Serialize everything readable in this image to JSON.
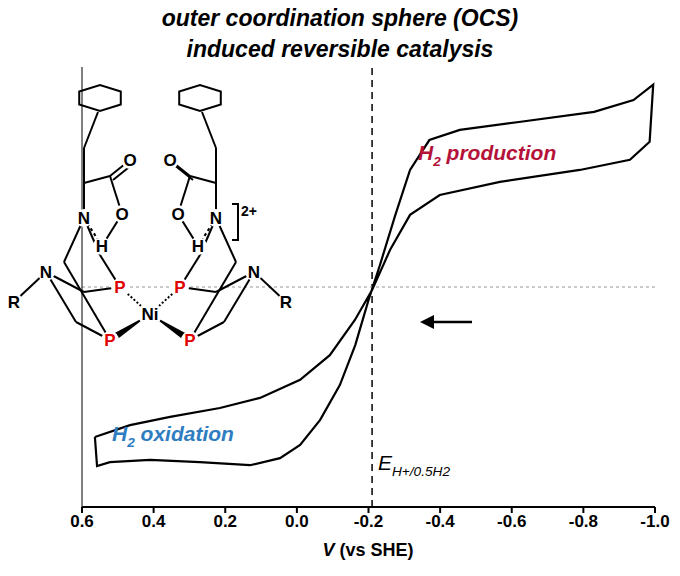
{
  "chart_data": {
    "type": "line",
    "title": [
      "outer coordination sphere (OCS)",
      "induced reversible catalysis"
    ],
    "xlabel": "V (vs SHE)",
    "xlim": [
      0.6,
      -1.0
    ],
    "xticks": [
      0.6,
      0.4,
      0.2,
      {
        "value": 0,
        "label": "0.0"
      },
      -0.2,
      -0.4,
      -0.6,
      -0.8,
      {
        "value": -1,
        "label": "-1.0"
      }
    ],
    "ylim": [
      -5,
      5
    ],
    "tick_labels": "x",
    "grid": false,
    "color": "#000000",
    "line_style": "solid",
    "x": [
      0.564,
      0.466,
      0.354,
      0.215,
      0.103,
      -0.009,
      -0.092,
      -0.162,
      -0.21,
      -0.26,
      -0.316,
      -0.399,
      -0.567,
      -0.79,
      -0.93,
      -0.985,
      -0.995,
      -0.94,
      -0.83,
      -0.62,
      -0.455,
      -0.37,
      -0.316,
      -0.275,
      -0.232,
      -0.2,
      -0.163,
      -0.12,
      -0.065,
      -0.009,
      0.047,
      0.131,
      0.271,
      0.41,
      0.522,
      0.558,
      0.564
    ],
    "values": [
      -3.41,
      -3.14,
      -2.95,
      -2.75,
      -2.52,
      -2.11,
      -1.55,
      -0.75,
      -0.07,
      0.84,
      1.64,
      2.09,
      2.39,
      2.66,
      2.89,
      3.3,
      4.6,
      4.25,
      3.98,
      3.75,
      3.57,
      3.34,
      2.66,
      1.64,
      0.5,
      -0.3,
      -1.32,
      -2.23,
      -3.02,
      -3.59,
      -3.89,
      -4.05,
      -3.98,
      -3.93,
      -3.98,
      -4.07,
      -3.41
    ],
    "reference_lines": [
      {
        "axis": "x",
        "value": -0.21,
        "line_style": "dashed",
        "color": "#000000",
        "label": [
          {
            "t": "E"
          },
          {
            "t": "H+/0.5H2",
            "sub": true
          }
        ]
      },
      {
        "axis": "y",
        "value": 0,
        "line_style": "dotted",
        "color": "#bbbbbb"
      }
    ],
    "annotations": [
      {
        "parts": [
          {
            "t": "H"
          },
          {
            "t": "2",
            "sub": true
          },
          {
            "t": " production"
          }
        ],
        "color": "#b5123a"
      },
      {
        "parts": [
          {
            "t": "H"
          },
          {
            "t": "2",
            "sub": true
          },
          {
            "t": " oxidation"
          }
        ],
        "color": "#2f7dc1"
      }
    ],
    "structure": {
      "atoms": [
        {
          "label": "N"
        },
        {
          "label": "H"
        },
        {
          "label": "O"
        },
        {
          "label": "O"
        },
        {
          "label": "N"
        },
        {
          "label": "H"
        },
        {
          "label": "O"
        },
        {
          "label": "O"
        },
        {
          "label": "N"
        },
        {
          "label": "N"
        },
        {
          "label": "R"
        },
        {
          "label": "R"
        },
        {
          "label": "P",
          "color": "#e00000"
        },
        {
          "label": "P",
          "color": "#e00000"
        },
        {
          "label": "P",
          "color": "#e00000"
        },
        {
          "label": "P",
          "color": "#e00000"
        },
        {
          "label": "Ni"
        }
      ],
      "charge": "2+"
    }
  }
}
